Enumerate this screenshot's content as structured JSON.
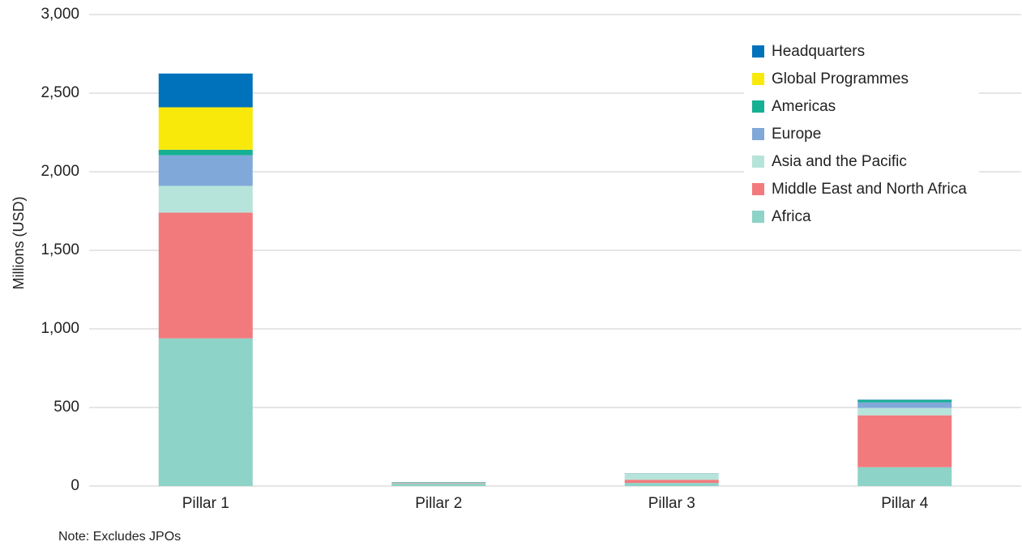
{
  "chart_data": {
    "type": "stacked_bar",
    "y_label": "Millions (USD)",
    "note": "Note: Excludes JPOs",
    "categories": [
      "Pillar 1",
      "Pillar 2",
      "Pillar 3",
      "Pillar 4"
    ],
    "series": [
      {
        "name": "Africa",
        "color": "#8dd3c7",
        "values": [
          940,
          15,
          20,
          120
        ]
      },
      {
        "name": "Middle East and North Africa",
        "color": "#f27a7d",
        "values": [
          800,
          3,
          20,
          330
        ]
      },
      {
        "name": "Asia and the Pacific",
        "color": "#b7e4da",
        "values": [
          170,
          3,
          40,
          47
        ]
      },
      {
        "name": "Europe",
        "color": "#80a8d8",
        "values": [
          195,
          2,
          2,
          36
        ]
      },
      {
        "name": "Americas",
        "color": "#16b093",
        "values": [
          35,
          2,
          0,
          15
        ]
      },
      {
        "name": "Global Programmes",
        "color": "#f9e90a",
        "values": [
          270,
          0,
          0,
          0
        ]
      },
      {
        "name": "Headquarters",
        "color": "#0072bc",
        "values": [
          215,
          0,
          0,
          2
        ]
      }
    ],
    "ylim": [
      0,
      3000
    ],
    "yticks": [
      0,
      {
        "value": 500,
        "label": "500"
      },
      {
        "value": 1000,
        "label": "1,000"
      },
      {
        "value": 1500,
        "label": "1,500"
      },
      {
        "value": 2000,
        "label": "2,000"
      },
      {
        "value": 2500,
        "label": "2,500"
      },
      {
        "value": 3000,
        "label": "3,000"
      }
    ],
    "grid": true,
    "legend": "upper right"
  }
}
